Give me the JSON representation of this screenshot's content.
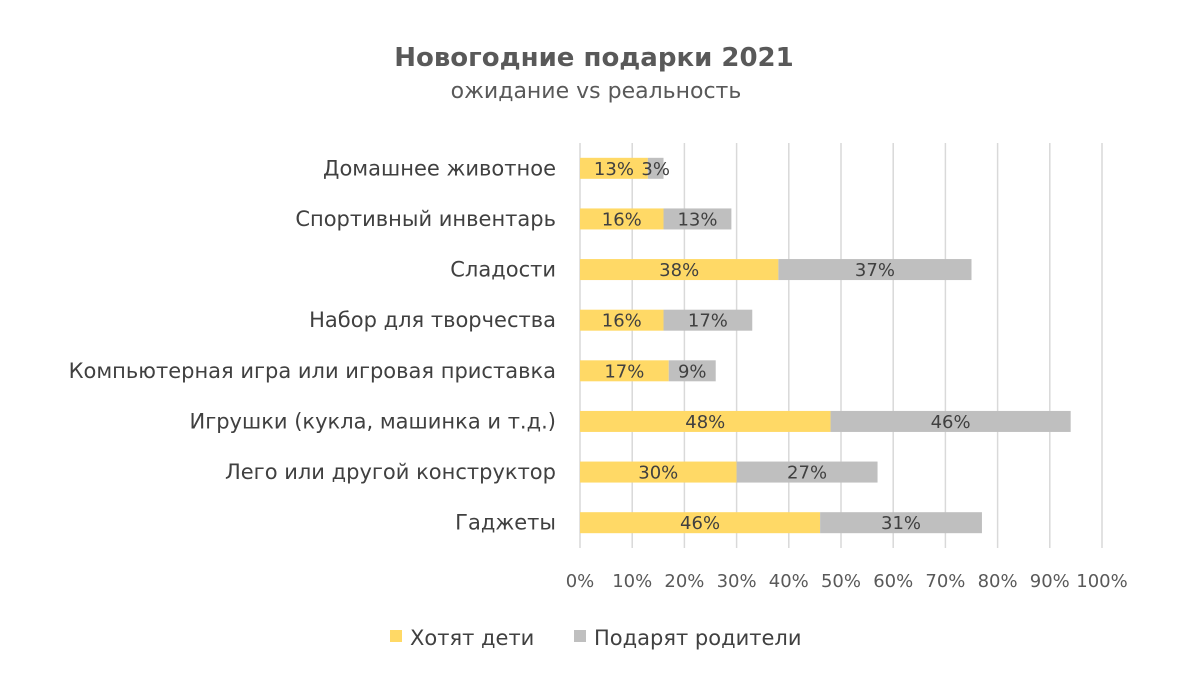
{
  "chart_data": {
    "type": "bar",
    "orientation": "horizontal",
    "stacked": true,
    "title": "Новогодние подарки 2021",
    "subtitle": "ожидание vs реальность",
    "categories": [
      "Домашнее животное",
      "Спортивный инвентарь",
      "Сладости",
      "Набор для творчества",
      "Компьютерная игра или игровая приставка",
      "Игрушки (кукла, машинка и т.д.)",
      "Лего или другой конструктор",
      "Гаджеты"
    ],
    "series": [
      {
        "name": "Хотят дети",
        "color": "#FFD966",
        "values": [
          13,
          16,
          38,
          16,
          17,
          48,
          30,
          46
        ]
      },
      {
        "name": "Подарят родители",
        "color": "#BFBFBF",
        "values": [
          3,
          13,
          37,
          17,
          9,
          46,
          27,
          31
        ]
      }
    ],
    "data_labels": [
      [
        "13%",
        "16%",
        "38%",
        "16%",
        "17%",
        "48%",
        "30%",
        "46%"
      ],
      [
        "3%",
        "13%",
        "37%",
        "17%",
        "9%",
        "46%",
        "27%",
        "31%"
      ]
    ],
    "xlim": [
      0,
      100
    ],
    "xticks": [
      0,
      10,
      20,
      30,
      40,
      50,
      60,
      70,
      80,
      90,
      100
    ],
    "xtick_labels": [
      "0%",
      "10%",
      "20%",
      "30%",
      "40%",
      "50%",
      "60%",
      "70%",
      "80%",
      "90%",
      "100%"
    ],
    "grid": true,
    "gridline_color": "#D9D9D9",
    "legend_position": "bottom"
  }
}
